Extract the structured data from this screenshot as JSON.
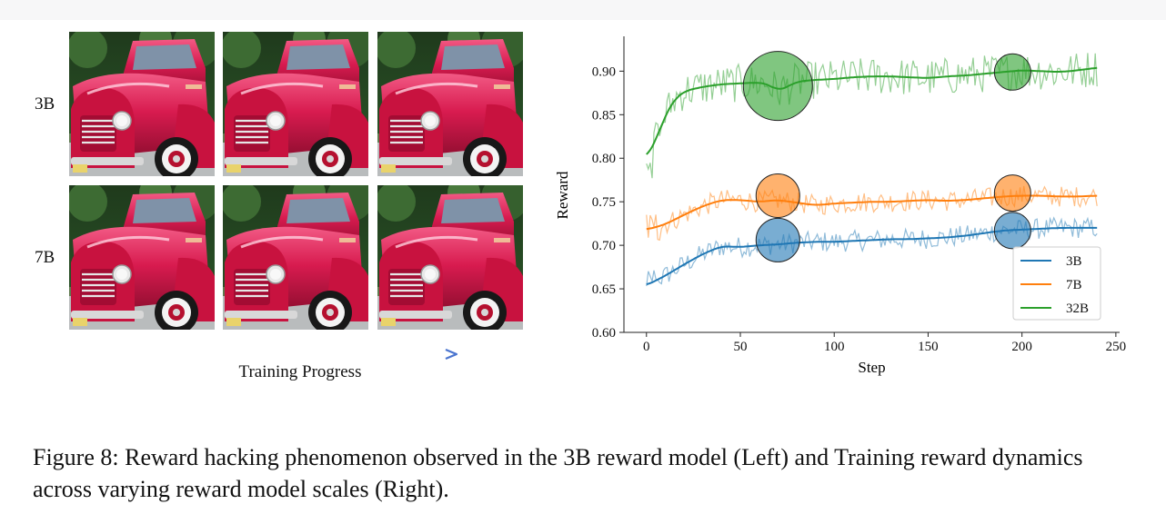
{
  "figure": {
    "caption": "Figure 8: Reward hacking phenomenon observed in the 3B reward model (Left) and Training reward dynamics across varying reward model scales (Right).",
    "left_panel": {
      "row_labels": [
        "3B",
        "7B"
      ],
      "arrow_label": "Training Progress",
      "arrow_gradient": [
        "#4fc6a0",
        "#4a74cf"
      ],
      "image_subject": "red pickup truck"
    }
  },
  "chart_data": {
    "type": "line",
    "xlabel": "Step",
    "ylabel": "Reward",
    "xlim": [
      -12,
      252
    ],
    "ylim": [
      0.6,
      0.94
    ],
    "xticks": [
      0,
      50,
      100,
      150,
      200,
      250
    ],
    "yticks": [
      0.6,
      0.65,
      0.7,
      0.75,
      0.8,
      0.85,
      0.9
    ],
    "x_range": [
      0,
      240
    ],
    "legend": {
      "position": "lower-right",
      "entries": [
        "3B",
        "7B",
        "32B"
      ]
    },
    "series": [
      {
        "name": "3B",
        "color": "#1f77b4",
        "smooth_keypoints": [
          [
            0,
            0.654
          ],
          [
            10,
            0.665
          ],
          [
            20,
            0.678
          ],
          [
            30,
            0.69
          ],
          [
            40,
            0.699
          ],
          [
            50,
            0.698
          ],
          [
            60,
            0.7
          ],
          [
            70,
            0.701
          ],
          [
            80,
            0.703
          ],
          [
            90,
            0.704
          ],
          [
            100,
            0.704
          ],
          [
            110,
            0.705
          ],
          [
            120,
            0.706
          ],
          [
            130,
            0.707
          ],
          [
            140,
            0.707
          ],
          [
            150,
            0.708
          ],
          [
            160,
            0.709
          ],
          [
            170,
            0.711
          ],
          [
            180,
            0.714
          ],
          [
            190,
            0.717
          ],
          [
            200,
            0.718
          ],
          [
            210,
            0.719
          ],
          [
            220,
            0.72
          ],
          [
            230,
            0.72
          ],
          [
            240,
            0.72
          ]
        ],
        "noise_amplitude": 0.012,
        "highlight_markers": [
          {
            "x": 70,
            "y": 0.706,
            "size": "medium"
          },
          {
            "x": 195,
            "y": 0.717,
            "size": "small"
          }
        ]
      },
      {
        "name": "7B",
        "color": "#ff7f0e",
        "smooth_keypoints": [
          [
            0,
            0.718
          ],
          [
            10,
            0.724
          ],
          [
            20,
            0.735
          ],
          [
            30,
            0.745
          ],
          [
            40,
            0.752
          ],
          [
            50,
            0.752
          ],
          [
            60,
            0.75
          ],
          [
            70,
            0.752
          ],
          [
            80,
            0.749
          ],
          [
            90,
            0.746
          ],
          [
            100,
            0.748
          ],
          [
            110,
            0.749
          ],
          [
            120,
            0.75
          ],
          [
            130,
            0.75
          ],
          [
            140,
            0.751
          ],
          [
            150,
            0.752
          ],
          [
            160,
            0.751
          ],
          [
            170,
            0.752
          ],
          [
            180,
            0.754
          ],
          [
            190,
            0.756
          ],
          [
            200,
            0.757
          ],
          [
            210,
            0.757
          ],
          [
            220,
            0.756
          ],
          [
            230,
            0.756
          ],
          [
            240,
            0.757
          ]
        ],
        "noise_amplitude": 0.012,
        "highlight_markers": [
          {
            "x": 70,
            "y": 0.757,
            "size": "medium"
          },
          {
            "x": 195,
            "y": 0.76,
            "size": "small"
          }
        ]
      },
      {
        "name": "32B",
        "color": "#2ca02c",
        "smooth_keypoints": [
          [
            0,
            0.8
          ],
          [
            5,
            0.82
          ],
          [
            10,
            0.85
          ],
          [
            15,
            0.868
          ],
          [
            20,
            0.877
          ],
          [
            30,
            0.882
          ],
          [
            40,
            0.885
          ],
          [
            50,
            0.886
          ],
          [
            60,
            0.887
          ],
          [
            65,
            0.885
          ],
          [
            70,
            0.877
          ],
          [
            75,
            0.882
          ],
          [
            80,
            0.888
          ],
          [
            90,
            0.89
          ],
          [
            100,
            0.891
          ],
          [
            110,
            0.893
          ],
          [
            120,
            0.894
          ],
          [
            130,
            0.894
          ],
          [
            140,
            0.893
          ],
          [
            150,
            0.892
          ],
          [
            160,
            0.894
          ],
          [
            170,
            0.895
          ],
          [
            180,
            0.897
          ],
          [
            190,
            0.899
          ],
          [
            200,
            0.901
          ],
          [
            210,
            0.9
          ],
          [
            220,
            0.899
          ],
          [
            230,
            0.901
          ],
          [
            240,
            0.904
          ]
        ],
        "noise_amplitude": 0.022,
        "highlight_markers": [
          {
            "x": 70,
            "y": 0.883,
            "size": "large"
          },
          {
            "x": 195,
            "y": 0.899,
            "size": "small"
          }
        ]
      }
    ]
  }
}
